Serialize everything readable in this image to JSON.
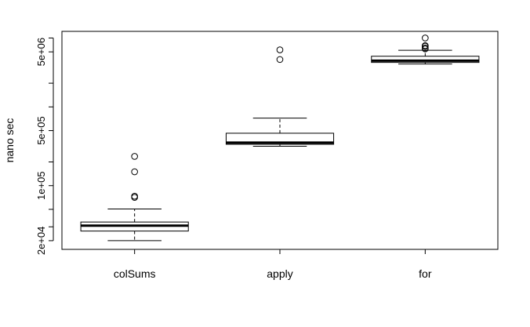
{
  "chart_data": {
    "type": "box",
    "ylabel": "nano sec",
    "y_scale": "log",
    "ylim": [
      17000,
      8500000
    ],
    "y_ticks": [
      {
        "value": 20000,
        "label": "2e+04"
      },
      {
        "value": 30000,
        "label": ""
      },
      {
        "value": 50000,
        "label": ""
      },
      {
        "value": 100000,
        "label": "1e+05"
      },
      {
        "value": 200000,
        "label": ""
      },
      {
        "value": 500000,
        "label": "5e+05"
      },
      {
        "value": 1000000,
        "label": ""
      },
      {
        "value": 2000000,
        "label": ""
      },
      {
        "value": 5000000,
        "label": "5e+06"
      },
      {
        "value": 7500000,
        "label": ""
      }
    ],
    "categories": [
      "colSums",
      "apply",
      "for"
    ],
    "series": [
      {
        "category": "colSums",
        "whisker_low": 20000,
        "q1": 26500,
        "median": 31000,
        "q3": 34500,
        "whisker_high": 50500,
        "outliers": [
          71000,
          73500,
          150000,
          235000
        ]
      },
      {
        "category": "apply",
        "whisker_low": 316000,
        "q1": 335000,
        "median": 352000,
        "q3": 463000,
        "whisker_high": 720000,
        "outliers": [
          4000000,
          5300000
        ]
      },
      {
        "category": "for",
        "whisker_low": 3510000,
        "q1": 3670000,
        "median": 3860000,
        "q3": 4400000,
        "whisker_high": 5230000,
        "outliers": [
          5450000,
          5600000,
          5900000,
          6000000,
          7500000
        ]
      }
    ],
    "grid": false,
    "legend": "none"
  }
}
